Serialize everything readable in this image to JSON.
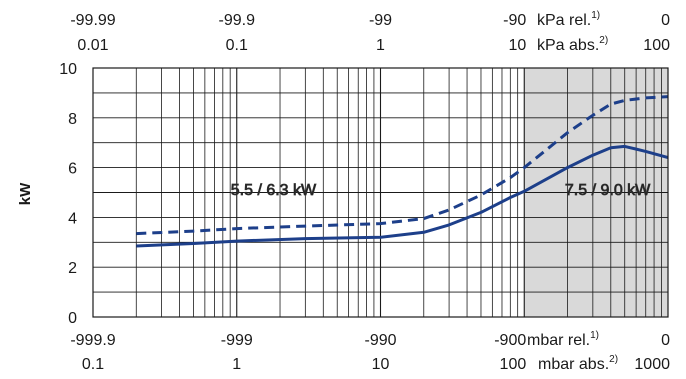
{
  "chart_data": {
    "type": "line",
    "title": "",
    "ylabel": "kW",
    "ylim": [
      0,
      10
    ],
    "yticks": [
      "0",
      "2",
      "4",
      "6",
      "8",
      "10"
    ],
    "x_scale": "log",
    "xlim_abs_kpa": [
      0.01,
      100
    ],
    "top_axis": {
      "rel_ticks": [
        "-99.99",
        "-99.9",
        "-99",
        "-90",
        "0"
      ],
      "abs_ticks": [
        "0.01",
        "0.1",
        "1",
        "10",
        "100"
      ],
      "rel_unit": "kPa rel.",
      "rel_note": "1)",
      "abs_unit": "kPa abs.",
      "abs_note": "2)"
    },
    "bottom_axis": {
      "rel_ticks": [
        "-999.9",
        "-999",
        "-990",
        "-900",
        "0"
      ],
      "abs_ticks": [
        "0.1",
        "1",
        "10",
        "100",
        "1000"
      ],
      "rel_unit": "mbar rel.",
      "rel_note": "1)",
      "abs_unit": "mbar abs.",
      "abs_note": "2)"
    },
    "shaded_region_kpa_abs": [
      10,
      100
    ],
    "annotations": [
      "5.5 / 6.3 kW",
      "7.5 / 9.0 kW"
    ],
    "series": [
      {
        "style": "solid",
        "x_kpa_abs": [
          0.02,
          0.05,
          0.1,
          0.3,
          1,
          2,
          3,
          5,
          8,
          10,
          20,
          30,
          40,
          50,
          70,
          100
        ],
        "values": [
          2.85,
          2.95,
          3.05,
          3.15,
          3.2,
          3.4,
          3.7,
          4.2,
          4.8,
          5.05,
          6.0,
          6.5,
          6.8,
          6.85,
          6.65,
          6.4
        ]
      },
      {
        "style": "dashed",
        "x_kpa_abs": [
          0.02,
          0.05,
          0.1,
          0.3,
          1,
          2,
          3,
          5,
          8,
          10,
          20,
          30,
          40,
          50,
          70,
          100
        ],
        "values": [
          3.35,
          3.45,
          3.55,
          3.65,
          3.75,
          3.95,
          4.3,
          4.9,
          5.6,
          6.0,
          7.4,
          8.1,
          8.55,
          8.7,
          8.8,
          8.85
        ]
      }
    ],
    "colors": {
      "line": "#1d3f8a",
      "grid": "#1a1a1a",
      "shade": "#d9d9d9",
      "text": "#1a1a1a"
    },
    "grid": true
  }
}
